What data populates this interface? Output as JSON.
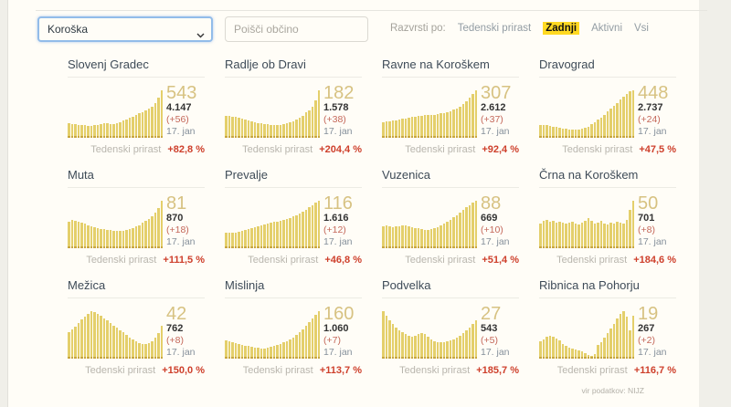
{
  "filters": {
    "region_select": {
      "value": "Koroška"
    },
    "search": {
      "placeholder": "Poišči občino"
    },
    "sort": {
      "label": "Razvrsti po:",
      "options": [
        {
          "label": "Tedenski prirast",
          "active": false
        },
        {
          "label": "Zadnji",
          "active": true
        },
        {
          "label": "Aktivni",
          "active": false
        },
        {
          "label": "Vsi",
          "active": false
        }
      ]
    }
  },
  "colors": {
    "accent_yellow": "#ffd922",
    "bar_fill": "#e4cf6b",
    "bar_base": "#c7a640",
    "big_number": "#d7c282",
    "growth_red": "#ce402c",
    "delta_red": "#c4685a"
  },
  "cards": [
    {
      "title": "Slovenj Gradec",
      "last": "543",
      "total": "4.147",
      "delta": "(+56)",
      "date": "17. jan",
      "growth_label": "Tedenski prirast",
      "growth": "+82,8 %",
      "bars": [
        0.3,
        0.29,
        0.28,
        0.27,
        0.26,
        0.26,
        0.25,
        0.25,
        0.26,
        0.27,
        0.28,
        0.3,
        0.31,
        0.29,
        0.28,
        0.3,
        0.33,
        0.36,
        0.39,
        0.42,
        0.45,
        0.48,
        0.51,
        0.54,
        0.57,
        0.61,
        0.66,
        0.73,
        0.84,
        1.0
      ]
    },
    {
      "title": "Radlje ob Dravi",
      "last": "182",
      "total": "1.578",
      "delta": "(+38)",
      "date": "17. jan",
      "growth_label": "Tedenski prirast",
      "growth": "+204,4 %",
      "bars": [
        0.46,
        0.47,
        0.45,
        0.44,
        0.43,
        0.41,
        0.39,
        0.37,
        0.35,
        0.33,
        0.31,
        0.3,
        0.29,
        0.28,
        0.27,
        0.27,
        0.26,
        0.27,
        0.28,
        0.3,
        0.32,
        0.35,
        0.38,
        0.42,
        0.47,
        0.53,
        0.58,
        0.66,
        0.78,
        1.0
      ]
    },
    {
      "title": "Ravne na Koroškem",
      "last": "307",
      "total": "2.612",
      "delta": "(+37)",
      "date": "17. jan",
      "growth_label": "Tedenski prirast",
      "growth": "+92,4 %",
      "bars": [
        0.33,
        0.34,
        0.35,
        0.36,
        0.37,
        0.38,
        0.4,
        0.41,
        0.42,
        0.44,
        0.45,
        0.46,
        0.47,
        0.48,
        0.48,
        0.49,
        0.49,
        0.5,
        0.51,
        0.52,
        0.54,
        0.56,
        0.59,
        0.62,
        0.66,
        0.71,
        0.77,
        0.84,
        0.92,
        1.0
      ]
    },
    {
      "title": "Dravograd",
      "last": "448",
      "total": "2.737",
      "delta": "(+24)",
      "date": "17. jan",
      "growth_label": "Tedenski prirast",
      "growth": "+47,5 %",
      "bars": [
        0.26,
        0.27,
        0.26,
        0.25,
        0.24,
        0.23,
        0.21,
        0.2,
        0.19,
        0.18,
        0.17,
        0.17,
        0.18,
        0.19,
        0.21,
        0.24,
        0.28,
        0.33,
        0.38,
        0.43,
        0.49,
        0.55,
        0.61,
        0.67,
        0.73,
        0.8,
        0.87,
        0.93,
        0.98,
        1.0
      ]
    },
    {
      "title": "Muta",
      "last": "81",
      "total": "870",
      "delta": "(+18)",
      "date": "17. jan",
      "growth_label": "Tedenski prirast",
      "growth": "+111,5 %",
      "bars": [
        0.56,
        0.59,
        0.57,
        0.55,
        0.53,
        0.51,
        0.49,
        0.47,
        0.45,
        0.43,
        0.41,
        0.4,
        0.39,
        0.38,
        0.37,
        0.36,
        0.36,
        0.37,
        0.39,
        0.41,
        0.43,
        0.46,
        0.49,
        0.53,
        0.57,
        0.62,
        0.68,
        0.75,
        0.84,
        1.0
      ]
    },
    {
      "title": "Prevalje",
      "last": "116",
      "total": "1.616",
      "delta": "(+12)",
      "date": "17. jan",
      "growth_label": "Tedenski prirast",
      "growth": "+46,8 %",
      "bars": [
        0.32,
        0.33,
        0.32,
        0.33,
        0.34,
        0.36,
        0.38,
        0.4,
        0.42,
        0.44,
        0.46,
        0.48,
        0.5,
        0.51,
        0.53,
        0.55,
        0.56,
        0.58,
        0.6,
        0.62,
        0.64,
        0.67,
        0.7,
        0.73,
        0.77,
        0.81,
        0.86,
        0.91,
        0.96,
        1.0
      ]
    },
    {
      "title": "Vuzenica",
      "last": "88",
      "total": "669",
      "delta": "(+10)",
      "date": "17. jan",
      "growth_label": "Tedenski prirast",
      "growth": "+51,4 %",
      "bars": [
        0.46,
        0.49,
        0.47,
        0.45,
        0.46,
        0.47,
        0.48,
        0.49,
        0.47,
        0.45,
        0.43,
        0.42,
        0.4,
        0.39,
        0.39,
        0.41,
        0.43,
        0.45,
        0.48,
        0.52,
        0.56,
        0.6,
        0.65,
        0.7,
        0.75,
        0.8,
        0.86,
        0.91,
        0.96,
        1.0
      ]
    },
    {
      "title": "Črna na Koroškem",
      "last": "50",
      "total": "701",
      "delta": "(+8)",
      "date": "17. jan",
      "growth_label": "Tedenski prirast",
      "growth": "+184,6 %",
      "bars": [
        0.52,
        0.57,
        0.6,
        0.56,
        0.58,
        0.54,
        0.56,
        0.54,
        0.52,
        0.54,
        0.56,
        0.52,
        0.5,
        0.54,
        0.58,
        0.64,
        0.57,
        0.52,
        0.54,
        0.57,
        0.52,
        0.5,
        0.54,
        0.52,
        0.56,
        0.54,
        0.52,
        0.6,
        0.8,
        1.0
      ]
    },
    {
      "title": "Mežica",
      "last": "42",
      "total": "762",
      "delta": "(+8)",
      "date": "17. jan",
      "growth_label": "Tedenski prirast",
      "growth": "+150,0 %",
      "bars": [
        0.55,
        0.62,
        0.68,
        0.75,
        0.82,
        0.88,
        0.94,
        1.0,
        0.98,
        0.95,
        0.9,
        0.85,
        0.8,
        0.75,
        0.7,
        0.65,
        0.6,
        0.55,
        0.5,
        0.45,
        0.4,
        0.36,
        0.33,
        0.31,
        0.3,
        0.32,
        0.37,
        0.44,
        0.54,
        0.7
      ]
    },
    {
      "title": "Mislinja",
      "last": "160",
      "total": "1.060",
      "delta": "(+7)",
      "date": "17. jan",
      "growth_label": "Tedenski prirast",
      "growth": "+113,7 %",
      "bars": [
        0.38,
        0.36,
        0.34,
        0.32,
        0.3,
        0.28,
        0.27,
        0.26,
        0.25,
        0.24,
        0.23,
        0.22,
        0.22,
        0.23,
        0.25,
        0.27,
        0.29,
        0.31,
        0.34,
        0.37,
        0.41,
        0.45,
        0.5,
        0.56,
        0.62,
        0.69,
        0.77,
        0.85,
        0.93,
        1.0
      ]
    },
    {
      "title": "Podvelka",
      "last": "27",
      "total": "543",
      "delta": "(+5)",
      "date": "17. jan",
      "growth_label": "Tedenski prirast",
      "growth": "+185,7 %",
      "bars": [
        1.0,
        0.9,
        0.81,
        0.73,
        0.66,
        0.6,
        0.55,
        0.52,
        0.49,
        0.47,
        0.49,
        0.51,
        0.53,
        0.51,
        0.47,
        0.41,
        0.37,
        0.35,
        0.34,
        0.35,
        0.37,
        0.39,
        0.41,
        0.44,
        0.48,
        0.53,
        0.59,
        0.66,
        0.73,
        0.81
      ]
    },
    {
      "title": "Ribnica na Pohorju",
      "last": "19",
      "total": "267",
      "delta": "(+2)",
      "date": "17. jan",
      "growth_label": "Tedenski prirast",
      "growth": "+116,7 %",
      "bars": [
        0.36,
        0.41,
        0.46,
        0.49,
        0.46,
        0.43,
        0.39,
        0.31,
        0.26,
        0.23,
        0.21,
        0.2,
        0.18,
        0.15,
        0.12,
        0.08,
        0.06,
        0.1,
        0.28,
        0.34,
        0.44,
        0.54,
        0.64,
        0.74,
        0.84,
        0.94,
        1.0,
        0.88,
        0.6,
        0.9
      ]
    }
  ],
  "footer": {
    "source": "vir podatkov: NIJZ"
  }
}
